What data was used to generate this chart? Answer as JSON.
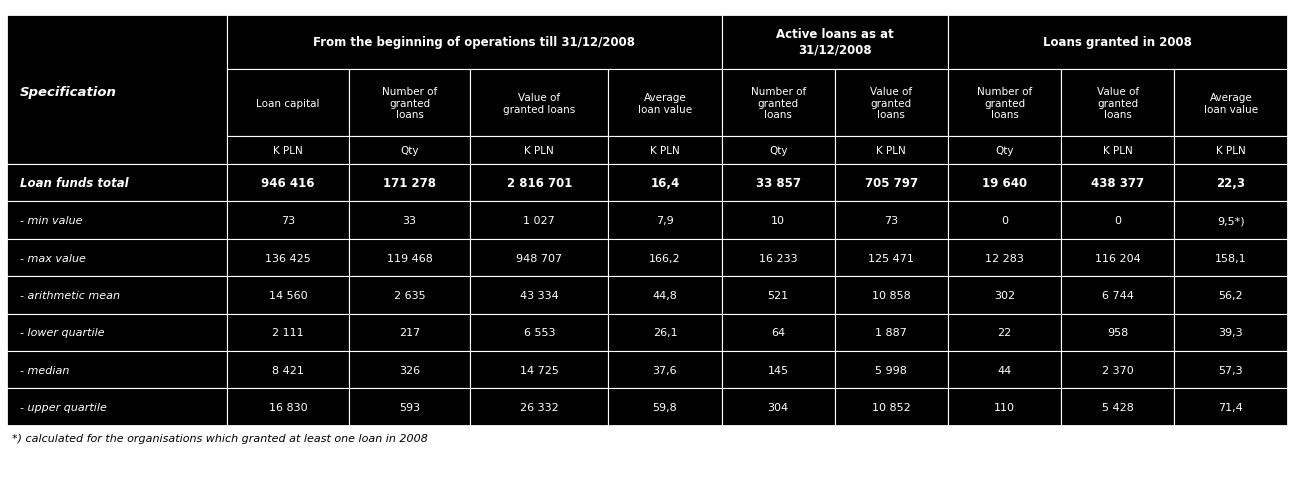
{
  "header_groups": [
    {
      "cols": [
        1,
        2,
        3,
        4
      ],
      "label": "From the beginning of operations till 31/12/2008"
    },
    {
      "cols": [
        5,
        6
      ],
      "label": "Active loans as at\n31/12/2008"
    },
    {
      "cols": [
        7,
        8,
        9
      ],
      "label": "Loans granted in 2008"
    }
  ],
  "col_headers": [
    "Specification",
    "Loan capital",
    "Number of\ngranted\nloans",
    "Value of\ngranted loans",
    "Average\nloan value",
    "Number of\ngranted\nloans",
    "Value of\ngranted\nloans",
    "Number of\ngranted\nloans",
    "Value of\ngranted\nloans",
    "Average\nloan value"
  ],
  "col_units": [
    "",
    "K PLN",
    "Qty",
    "K PLN",
    "K PLN",
    "Qty",
    "K PLN",
    "Qty",
    "K PLN",
    "K PLN"
  ],
  "rows": [
    {
      "label": "Loan funds total",
      "bold": true,
      "values": [
        "946 416",
        "171 278",
        "2 816 701",
        "16,4",
        "33 857",
        "705 797",
        "19 640",
        "438 377",
        "22,3"
      ]
    },
    {
      "label": "- min value",
      "bold": false,
      "values": [
        "73",
        "33",
        "1 027",
        "7,9",
        "10",
        "73",
        "0",
        "0",
        "9,5*)"
      ]
    },
    {
      "label": "- max value",
      "bold": false,
      "values": [
        "136 425",
        "119 468",
        "948 707",
        "166,2",
        "16 233",
        "125 471",
        "12 283",
        "116 204",
        "158,1"
      ]
    },
    {
      "label": "- arithmetic mean",
      "bold": false,
      "values": [
        "14 560",
        "2 635",
        "43 334",
        "44,8",
        "521",
        "10 858",
        "302",
        "6 744",
        "56,2"
      ]
    },
    {
      "label": "- lower quartile",
      "bold": false,
      "values": [
        "2 111",
        "217",
        "6 553",
        "26,1",
        "64",
        "1 887",
        "22",
        "958",
        "39,3"
      ]
    },
    {
      "label": "- median",
      "bold": false,
      "values": [
        "8 421",
        "326",
        "14 725",
        "37,6",
        "145",
        "5 998",
        "44",
        "2 370",
        "57,3"
      ]
    },
    {
      "label": "- upper quartile",
      "bold": false,
      "values": [
        "16 830",
        "593",
        "26 332",
        "59,8",
        "304",
        "10 852",
        "110",
        "5 428",
        "71,4"
      ]
    }
  ],
  "footnote": "*) calculated for the organisations which granted at least one loan in 2008",
  "bg_color": "#000000",
  "text_color": "#ffffff",
  "border_color": "#ffffff",
  "footnote_bg": "#ffffff",
  "footnote_text": "#000000",
  "col_widths_rel": [
    1.6,
    0.88,
    0.88,
    1.0,
    0.82,
    0.82,
    0.82,
    0.82,
    0.82,
    0.82
  ]
}
